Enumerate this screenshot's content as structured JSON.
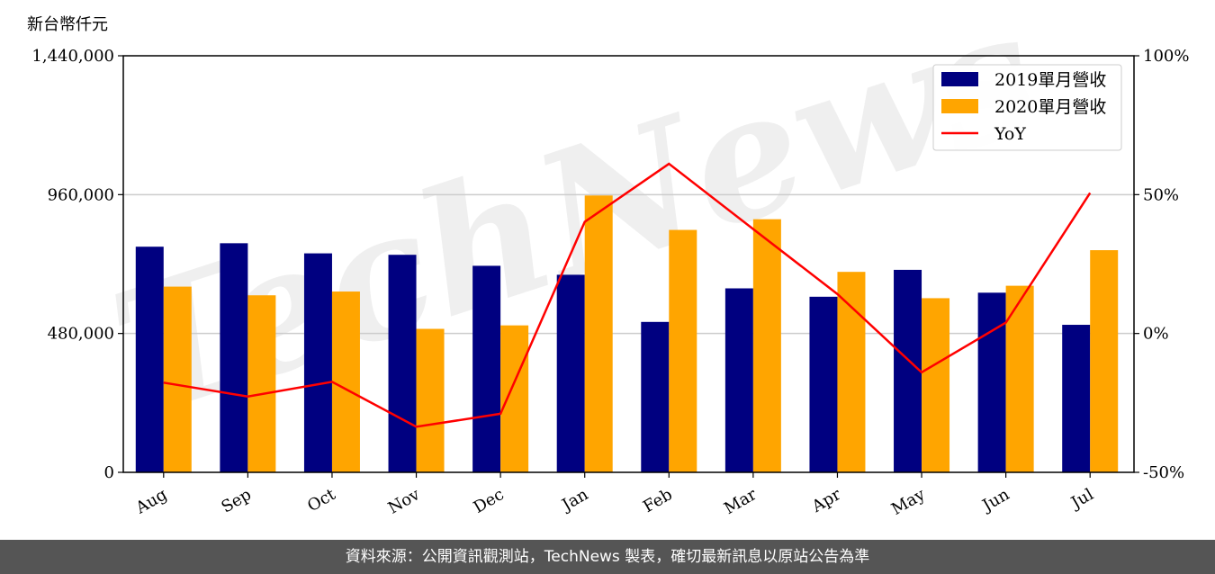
{
  "chart_data": {
    "type": "bar",
    "ylabel": "新台幣仟元",
    "categories": [
      "Aug",
      "Sep",
      "Oct",
      "Nov",
      "Dec",
      "Jan",
      "Feb",
      "Mar",
      "Apr",
      "May",
      "Jun",
      "Jul"
    ],
    "series": [
      {
        "name": "2019單月營收",
        "type": "bar",
        "axis": "left",
        "color": "#000080",
        "values": [
          780000,
          792000,
          757000,
          752000,
          714000,
          683000,
          520000,
          636000,
          607000,
          700000,
          621000,
          510000
        ]
      },
      {
        "name": "2020單月營收",
        "type": "bar",
        "axis": "left",
        "color": "#FFA500",
        "values": [
          642000,
          612000,
          625000,
          496000,
          508000,
          957000,
          838000,
          875000,
          693000,
          602000,
          645000,
          768000
        ]
      },
      {
        "name": "YoY",
        "type": "line",
        "axis": "right",
        "color": "#FF0000",
        "unit": "%",
        "values": [
          -17.7,
          -22.7,
          -17.4,
          -33.6,
          -28.9,
          40.2,
          61.1,
          37.6,
          14.2,
          -14.0,
          3.9,
          50.6
        ]
      }
    ],
    "ylim": [
      0,
      1440000
    ],
    "yticks": [
      "0",
      "480,000",
      "960,000",
      "1,440,000"
    ],
    "y2lim": [
      -50,
      100
    ],
    "y2ticks": [
      "-50%",
      "0%",
      "50%",
      "100%"
    ],
    "grid": true,
    "legend_position": "top-right",
    "watermark": "TechNews"
  },
  "footer": {
    "source": "資料來源：公開資訊觀測站，TechNews 製表，確切最新訊息以原站公告為準"
  }
}
